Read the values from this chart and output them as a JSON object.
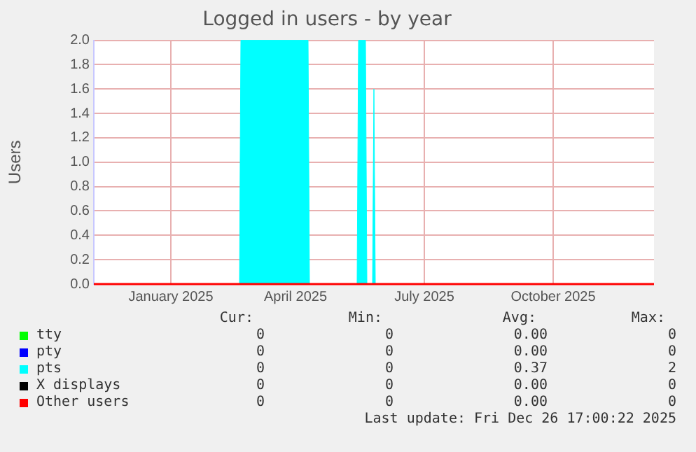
{
  "chart_data": {
    "type": "area",
    "title": "Logged in users - by year",
    "ylabel": "Users",
    "xlim": [
      "2024-11-21",
      "2025-12-26"
    ],
    "xticks": [
      {
        "value": "2025-01-15",
        "label": "January 2025"
      },
      {
        "value": "2025-04-14",
        "label": "April 2025"
      },
      {
        "value": "2025-07-15",
        "label": "July 2025"
      },
      {
        "value": "2025-10-15",
        "label": "October 2025"
      }
    ],
    "ylim": [
      0,
      2
    ],
    "yticks": [
      {
        "value": 0,
        "label": "0.0"
      },
      {
        "value": 0.2,
        "label": "0.2"
      },
      {
        "value": 0.4,
        "label": "0.4"
      },
      {
        "value": 0.6,
        "label": "0.6"
      },
      {
        "value": 0.8,
        "label": "0.8"
      },
      {
        "value": 1,
        "label": "1.0"
      },
      {
        "value": 1.2,
        "label": "1.2"
      },
      {
        "value": 1.4,
        "label": "1.4"
      },
      {
        "value": 1.6,
        "label": "1.6"
      },
      {
        "value": 1.8,
        "label": "1.8"
      },
      {
        "value": 2,
        "label": "2.0"
      }
    ],
    "grid": true,
    "legend": "bottom",
    "series": [
      {
        "name": "tty",
        "color": "#00ff00"
      },
      {
        "name": "pty",
        "color": "#0000ff"
      },
      {
        "name": "pts",
        "color": "#00ffff",
        "x": [
          "2024-11-21",
          "2025-03-05",
          "2025-03-06",
          "2025-04-23",
          "2025-04-24",
          "2025-05-28",
          "2025-05-29",
          "2025-06-03",
          "2025-06-04",
          "2025-06-08",
          "2025-06-09",
          "2025-06-10",
          "2025-12-26"
        ],
        "values": [
          0,
          0,
          2,
          2,
          0,
          0,
          2,
          2,
          0,
          0,
          1.6,
          0,
          0
        ]
      },
      {
        "name": "X displays",
        "color": "#000000"
      },
      {
        "name": "Other users",
        "color": "#ff0000",
        "type": "line",
        "x": [
          "2024-11-21",
          "2025-12-26"
        ],
        "values": [
          0,
          0
        ]
      }
    ],
    "annotations": [
      "Cur:",
      "Min:",
      "Avg:",
      "Max:",
      "0",
      "0",
      "0.00",
      "0",
      "0",
      "0",
      "0.00",
      "0",
      "0",
      "0",
      "0.37",
      "2",
      "0",
      "0",
      "0.00",
      "0",
      "0",
      "0",
      "0.00",
      "0",
      "Last update: Fri Dec 26 17:00:22 2025"
    ]
  }
}
